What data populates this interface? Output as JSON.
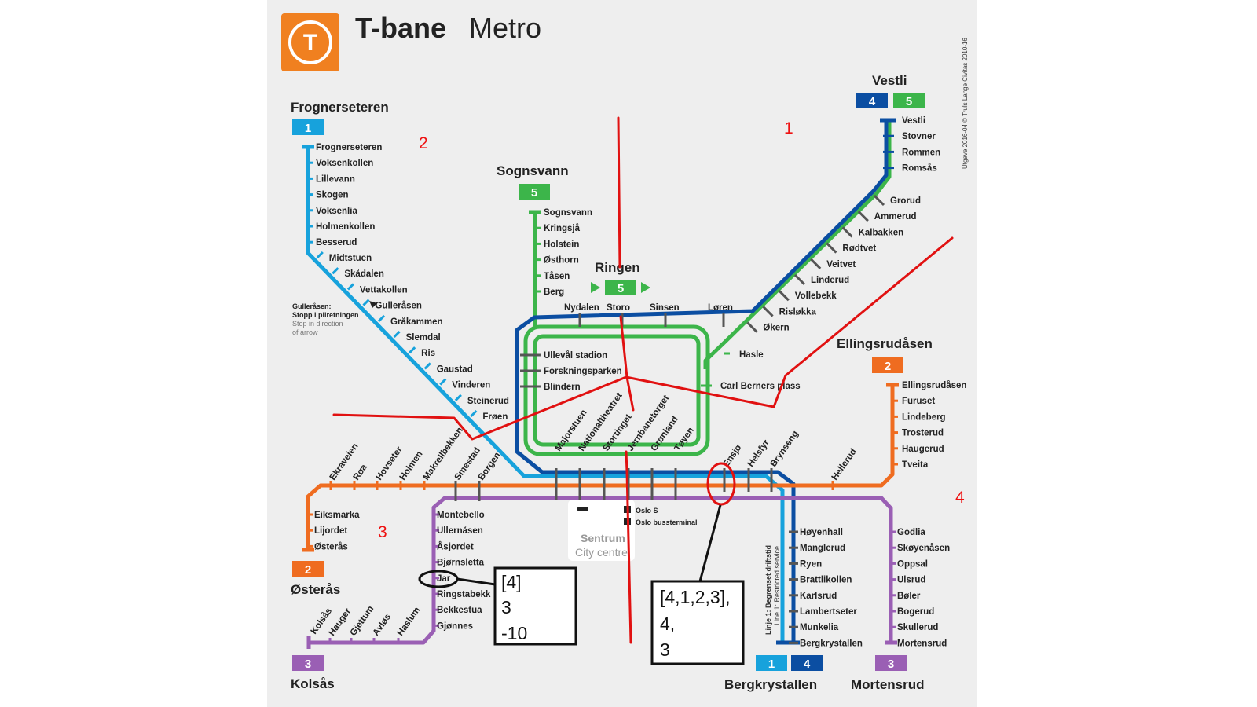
{
  "header": {
    "logo_letter": "T",
    "title_bold": "T-bane",
    "title_light": "Metro",
    "credit": "Utgave 2016-04 © Truls Lange Civitas 2010-16"
  },
  "colors": {
    "line1": "#17a2dc",
    "line2": "#ef6c20",
    "line3": "#9a5fb4",
    "line4": "#0b4ea2",
    "line5": "#3cb54a",
    "logo": "#f08020",
    "annotation": "#e11111"
  },
  "terminals": {
    "frognerseteren": {
      "name": "Frognerseteren",
      "lines": [
        "1"
      ]
    },
    "sognsvann": {
      "name": "Sognsvann",
      "lines": [
        "5"
      ]
    },
    "ringen": {
      "name": "Ringen",
      "lines": [
        "5"
      ]
    },
    "vestli": {
      "name": "Vestli",
      "lines": [
        "4",
        "5"
      ]
    },
    "ellingsrudasen": {
      "name": "Ellingsrudåsen",
      "lines": [
        "2"
      ]
    },
    "osteras": {
      "name": "Østerås",
      "lines": [
        "2"
      ]
    },
    "kolsas": {
      "name": "Kolsås",
      "lines": [
        "3"
      ]
    },
    "bergkrystallen": {
      "name": "Bergkrystallen",
      "lines": [
        "1",
        "4"
      ]
    },
    "mortensrud": {
      "name": "Mortensrud",
      "lines": [
        "3"
      ]
    }
  },
  "stations": {
    "line1_branch": [
      "Frognerseteren",
      "Voksenkollen",
      "Lillevann",
      "Skogen",
      "Voksenlia",
      "Holmenkollen",
      "Besserud",
      "Midtstuen",
      "Skådalen",
      "Vettakollen",
      "Gulleråsen",
      "Gråkammen",
      "Slemdal",
      "Ris",
      "Gaustad",
      "Vinderen",
      "Steinerud",
      "Frøen"
    ],
    "sognsvann_branch": [
      "Sognsvann",
      "Kringsjå",
      "Holstein",
      "Østhorn",
      "Tåsen",
      "Berg"
    ],
    "ring_north": [
      "Nydalen",
      "Storo",
      "Sinsen",
      "Løren"
    ],
    "ring_west": [
      "Ullevål stadion",
      "Forskningsparken",
      "Blindern"
    ],
    "carl_berners": "Carl Berners plass",
    "hasle": "Hasle",
    "vestli_branch": [
      "Vestli",
      "Stovner",
      "Rommen",
      "Romsås",
      "Grorud",
      "Ammerud",
      "Kalbakken",
      "Rødtvet",
      "Veitvet",
      "Linderud",
      "Vollebekk",
      "Risløkka",
      "Økern"
    ],
    "city": [
      "Majorstuen",
      "Nationaltheatret",
      "Stortinget",
      "Jernbanetorget",
      "Grønland",
      "Tøyen"
    ],
    "east_mid": [
      "Ensjø",
      "Helsfyr",
      "Brynseng"
    ],
    "hellerud": "Hellerud",
    "line2_east": [
      "Ellingsrudåsen",
      "Furuset",
      "Lindeberg",
      "Trosterud",
      "Haugerud",
      "Tveita"
    ],
    "line2_west": [
      "Ekraveien",
      "Røa",
      "Hovseter",
      "Holmen",
      "Makrellbekken"
    ],
    "line3_west_diag": [
      "Smestad",
      "Borgen"
    ],
    "osteras_branch": [
      "Eiksmarka",
      "Lijordet",
      "Østerås"
    ],
    "kolsas_branch": [
      "Montebello",
      "Ullernåsen",
      "Åsjordet",
      "Bjørnsletta",
      "Jar",
      "Ringstabekk",
      "Bekkestua",
      "Gjønnes"
    ],
    "kolsas_bottom": [
      "Kolsås",
      "Hauger",
      "Gjettum",
      "Avløs",
      "Haslum"
    ],
    "bergkrystallen_branch": [
      "Høyenhall",
      "Manglerud",
      "Ryen",
      "Brattlikollen",
      "Karlsrud",
      "Lambertseter",
      "Munkelia",
      "Bergkrystallen"
    ],
    "mortensrud_branch": [
      "Godlia",
      "Skøyenåsen",
      "Oppsal",
      "Ulsrud",
      "Bøler",
      "Bogerud",
      "Skullerud",
      "Mortensrud"
    ]
  },
  "notes": {
    "gulleraasen": [
      "Gulleråsen:",
      "Stopp i pilretningen",
      "Stop in direction",
      "of arrow"
    ],
    "restricted": [
      "Linje 1: Begrenset driftstid",
      "Line 1: Restricted service"
    ],
    "centre": [
      "Sentrum",
      "City centre"
    ],
    "oslo_s": "Oslo S",
    "bus_terminal": "Oslo bussterminal"
  },
  "annotations": {
    "region_labels": [
      "1",
      "2",
      "3",
      "4"
    ],
    "box_left": [
      "[4]",
      "3",
      "-10"
    ],
    "box_right": [
      "[4,1,2,3],",
      "4,",
      "3"
    ]
  }
}
